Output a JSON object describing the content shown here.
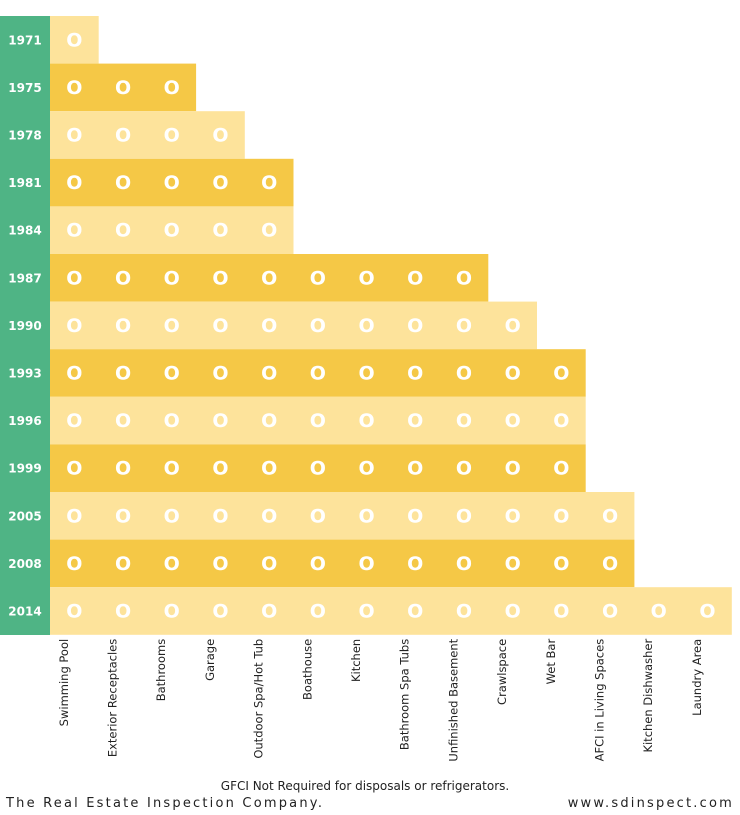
{
  "columns": [
    "Swimming Pool",
    "Exterior Receptacles",
    "Bathrooms",
    "Garage",
    "Outdoor Spa/Hot Tub",
    "Boathouse",
    "Kitchen",
    "Bathroom Spa Tubs",
    "Unfinished Basement",
    "Crawlspace",
    "Wet Bar",
    "AFCI in Living Spaces",
    "Kitchen Dishwasher",
    "Laundry Area"
  ],
  "rows": [
    {
      "year": "1971",
      "cells": [
        "O"
      ]
    },
    {
      "year": "1975",
      "cells": [
        "O",
        "O",
        "O"
      ]
    },
    {
      "year": "1978",
      "cells": [
        "O",
        "O",
        "O",
        "O"
      ]
    },
    {
      "year": "1981",
      "cells": [
        "O",
        "O",
        "O",
        "O",
        "O"
      ]
    },
    {
      "year": "1984",
      "cells": [
        "O",
        "O",
        "O",
        "O",
        "O"
      ]
    },
    {
      "year": "1987",
      "cells": [
        "O",
        "O",
        "O",
        "O",
        "O",
        "O",
        "O",
        "O",
        "O"
      ]
    },
    {
      "year": "1990",
      "cells": [
        "O",
        "O",
        "O",
        "O",
        "O",
        "O",
        "O",
        "O",
        "O",
        "O"
      ]
    },
    {
      "year": "1993",
      "cells": [
        "O",
        "O",
        "O",
        "O",
        "O",
        "O",
        "O",
        "O",
        "O",
        "O",
        "O"
      ]
    },
    {
      "year": "1996",
      "cells": [
        "O",
        "O",
        "O",
        "O",
        "O",
        "O",
        "O",
        "O",
        "O",
        "O",
        "O"
      ]
    },
    {
      "year": "1999",
      "cells": [
        "O",
        "O",
        "O",
        "O",
        "O",
        "O",
        "O",
        "O",
        "O",
        "O",
        "O"
      ]
    },
    {
      "year": "2005",
      "cells": [
        "O",
        "O",
        "O",
        "O",
        "O",
        "O",
        "O",
        "O",
        "O",
        "O",
        "O",
        "O"
      ]
    },
    {
      "year": "2008",
      "cells": [
        "O",
        "O",
        "O",
        "O",
        "O",
        "O",
        "O",
        "O",
        "O",
        "O",
        "O",
        "O"
      ]
    },
    {
      "year": "2014",
      "cells": [
        "O",
        "O",
        "O",
        "O",
        "O",
        "O",
        "O",
        "O",
        "O",
        "O",
        "O",
        "O",
        "O",
        "O"
      ]
    }
  ],
  "footer": {
    "note": "GFCI Not Required for disposals or refrigerators.",
    "company": "The Real Estate Inspection Company.",
    "website": "www.sdinspect.com"
  }
}
